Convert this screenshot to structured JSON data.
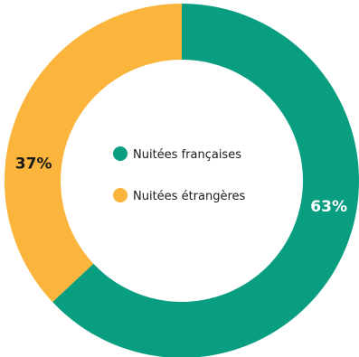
{
  "chart_data": {
    "type": "pie",
    "variant": "donut",
    "series": [
      {
        "name": "Nuitées françaises",
        "value": 63,
        "value_label": "63%",
        "color": "#0a9e80",
        "label_color": "#ffffff"
      },
      {
        "name": "Nuitées étrangères",
        "value": 37,
        "value_label": "37%",
        "color": "#fbb53c",
        "label_color": "#1a1a1a"
      }
    ],
    "start": "12 o'clock",
    "direction": "clockwise",
    "legend_position": "center"
  }
}
